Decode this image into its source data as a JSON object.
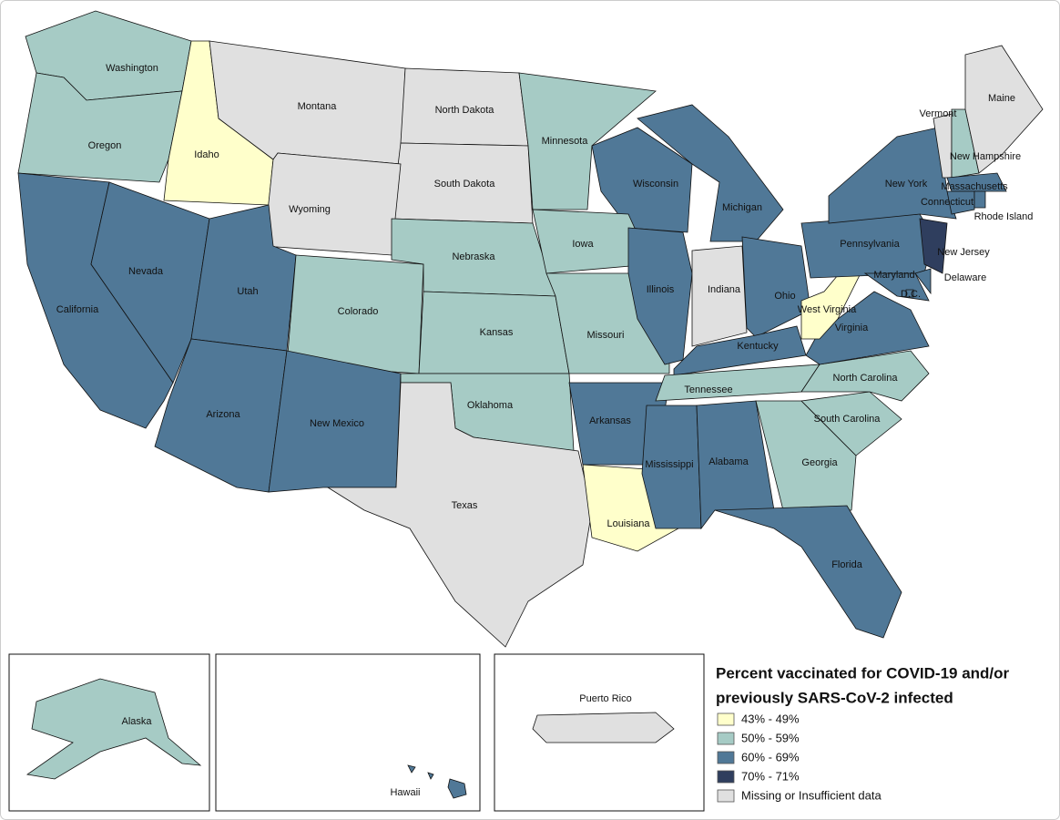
{
  "legend": {
    "title": [
      "Percent vaccinated for COVID-19 and/or",
      "previously SARS-CoV-2 infected"
    ],
    "classes": [
      {
        "label": "43% - 49%",
        "color": "#ffffcb"
      },
      {
        "label": "50% - 59%",
        "color": "#a6cbc5"
      },
      {
        "label": "60% - 69%",
        "color": "#507897"
      },
      {
        "label": "70% - 71%",
        "color": "#2f3e5e"
      },
      {
        "label": "Missing or Insufficient data",
        "color": "#e0e0e0"
      }
    ]
  },
  "states": [
    {
      "name": "Washington",
      "class": 1
    },
    {
      "name": "Oregon",
      "class": 1
    },
    {
      "name": "Idaho",
      "class": 0
    },
    {
      "name": "Montana",
      "class": 4
    },
    {
      "name": "North Dakota",
      "class": 4
    },
    {
      "name": "South Dakota",
      "class": 4
    },
    {
      "name": "Wyoming",
      "class": 4
    },
    {
      "name": "Minnesota",
      "class": 1
    },
    {
      "name": "Wisconsin",
      "class": 2
    },
    {
      "name": "Michigan",
      "class": 2
    },
    {
      "name": "California",
      "class": 2
    },
    {
      "name": "Nevada",
      "class": 2
    },
    {
      "name": "Utah",
      "class": 2
    },
    {
      "name": "Arizona",
      "class": 2
    },
    {
      "name": "Colorado",
      "class": 1
    },
    {
      "name": "New Mexico",
      "class": 2
    },
    {
      "name": "Nebraska",
      "class": 1
    },
    {
      "name": "Kansas",
      "class": 1
    },
    {
      "name": "Oklahoma",
      "class": 1
    },
    {
      "name": "Texas",
      "class": 4
    },
    {
      "name": "Iowa",
      "class": 1
    },
    {
      "name": "Missouri",
      "class": 1
    },
    {
      "name": "Arkansas",
      "class": 2
    },
    {
      "name": "Louisiana",
      "class": 0
    },
    {
      "name": "Illinois",
      "class": 2
    },
    {
      "name": "Indiana",
      "class": 4
    },
    {
      "name": "Ohio",
      "class": 2
    },
    {
      "name": "Kentucky",
      "class": 2
    },
    {
      "name": "Tennessee",
      "class": 1
    },
    {
      "name": "Mississippi",
      "class": 2
    },
    {
      "name": "Alabama",
      "class": 2
    },
    {
      "name": "Georgia",
      "class": 1
    },
    {
      "name": "Florida",
      "class": 2
    },
    {
      "name": "South Carolina",
      "class": 1
    },
    {
      "name": "North Carolina",
      "class": 1
    },
    {
      "name": "Virginia",
      "class": 2
    },
    {
      "name": "West Virginia",
      "class": 0
    },
    {
      "name": "Pennsylvania",
      "class": 2
    },
    {
      "name": "New York",
      "class": 2
    },
    {
      "name": "New Jersey",
      "class": 3
    },
    {
      "name": "Delaware",
      "class": 2
    },
    {
      "name": "Maryland",
      "class": 2
    },
    {
      "name": "D.C.",
      "class": 2
    },
    {
      "name": "Vermont",
      "class": 4
    },
    {
      "name": "New Hampshire",
      "class": 1
    },
    {
      "name": "Maine",
      "class": 4
    },
    {
      "name": "Massachusetts",
      "class": 2
    },
    {
      "name": "Connecticut",
      "class": 2
    },
    {
      "name": "Rhode Island",
      "class": 2
    },
    {
      "name": "Alaska",
      "class": 1
    },
    {
      "name": "Hawaii",
      "class": 2
    },
    {
      "name": "Puerto Rico",
      "class": 4
    }
  ]
}
